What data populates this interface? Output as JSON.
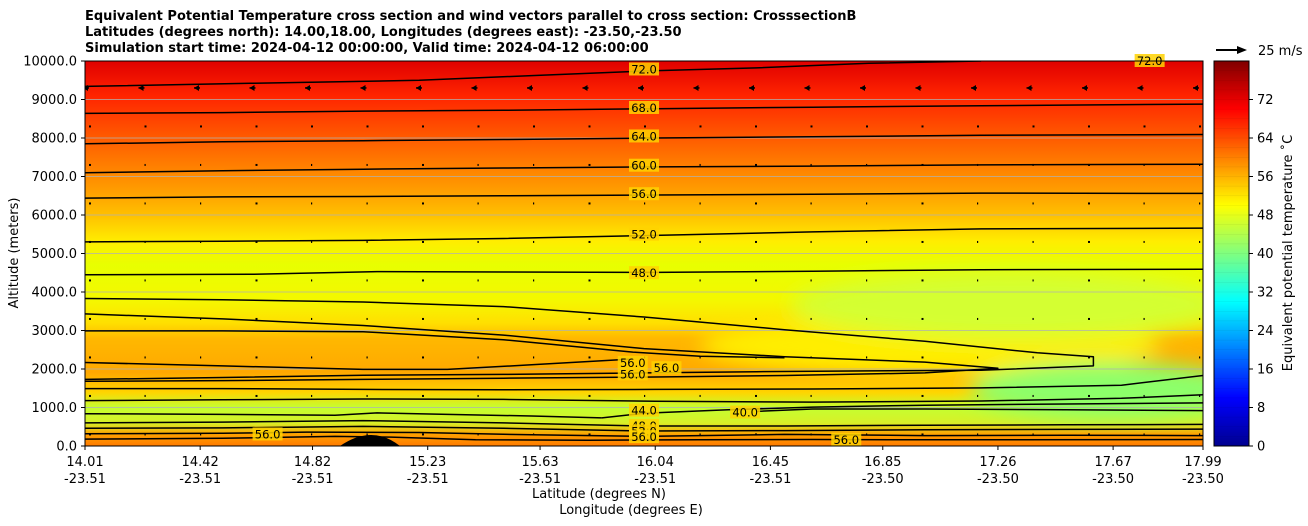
{
  "title_lines": [
    "Equivalent Potential Temperature cross section and wind vectors parallel to cross section: CrosssectionB",
    "Latitudes (degrees north): 14.00,18.00, Longitudes (degrees east): -23.50,-23.50",
    "Simulation start time: 2024-04-12 00:00:00, Valid time: 2024-04-12 06:00:00"
  ],
  "wind_key_label": "25 m/s",
  "chart_data": {
    "type": "heatmap",
    "xlabel": "Latitude (degrees N)",
    "xlabel2": "Longitude (degrees E)",
    "ylabel": "Altitude (meters)",
    "colorbar_label": "Equivalent potential temperature ˚C",
    "ylim": [
      0,
      10000
    ],
    "clim": [
      0,
      80
    ],
    "grid": true,
    "x_ticks": [
      {
        "lat": "14.01",
        "lon": "-23.51",
        "pos": 14.01
      },
      {
        "lat": "14.42",
        "lon": "-23.51",
        "pos": 14.42
      },
      {
        "lat": "14.82",
        "lon": "-23.51",
        "pos": 14.82
      },
      {
        "lat": "15.23",
        "lon": "-23.51",
        "pos": 15.23
      },
      {
        "lat": "15.63",
        "lon": "-23.51",
        "pos": 15.63
      },
      {
        "lat": "16.04",
        "lon": "-23.51",
        "pos": 16.04
      },
      {
        "lat": "16.45",
        "lon": "-23.51",
        "pos": 16.45
      },
      {
        "lat": "16.85",
        "lon": "-23.50",
        "pos": 16.85
      },
      {
        "lat": "17.26",
        "lon": "-23.50",
        "pos": 17.26
      },
      {
        "lat": "17.67",
        "lon": "-23.50",
        "pos": 17.67
      },
      {
        "lat": "17.99",
        "lon": "-23.50",
        "pos": 17.99
      }
    ],
    "y_ticks": [
      "0.0",
      "1000.0",
      "2000.0",
      "3000.0",
      "4000.0",
      "5000.0",
      "6000.0",
      "7000.0",
      "8000.0",
      "9000.0",
      "10000.0"
    ],
    "colorbar_ticks": [
      "0",
      "8",
      "16",
      "24",
      "32",
      "40",
      "48",
      "56",
      "64",
      "72"
    ],
    "contour_labels": [
      {
        "text": "72.0",
        "x": 16.0,
        "y": 9780
      },
      {
        "text": "72.0",
        "x": 17.8,
        "y": 10000
      },
      {
        "text": "68.0",
        "x": 16.0,
        "y": 8780
      },
      {
        "text": "64.0",
        "x": 16.0,
        "y": 8040
      },
      {
        "text": "60.0",
        "x": 16.0,
        "y": 7280
      },
      {
        "text": "56.0",
        "x": 16.0,
        "y": 6540
      },
      {
        "text": "52.0",
        "x": 16.0,
        "y": 5490
      },
      {
        "text": "48.0",
        "x": 16.0,
        "y": 4490
      },
      {
        "text": "56.0",
        "x": 15.96,
        "y": 2160
      },
      {
        "text": "56.0",
        "x": 16.08,
        "y": 2020
      },
      {
        "text": "56.0",
        "x": 15.96,
        "y": 1860
      },
      {
        "text": "44.0",
        "x": 16.0,
        "y": 920
      },
      {
        "text": "48.0",
        "x": 16.0,
        "y": 520
      },
      {
        "text": "52.0",
        "x": 16.0,
        "y": 380
      },
      {
        "text": "56.0",
        "x": 16.0,
        "y": 230
      },
      {
        "text": "56.0",
        "x": 14.66,
        "y": 300
      },
      {
        "text": "40.0",
        "x": 16.36,
        "y": 870
      },
      {
        "text": "56.0",
        "x": 16.72,
        "y": 160
      }
    ],
    "contours": [
      {
        "level": 72,
        "points": [
          [
            14.01,
            9340
          ],
          [
            14.6,
            9420
          ],
          [
            15.2,
            9500
          ],
          [
            15.6,
            9620
          ],
          [
            16.0,
            9740
          ],
          [
            16.4,
            9820
          ],
          [
            16.8,
            9940
          ],
          [
            17.2,
            10000
          ]
        ]
      },
      {
        "level": 68,
        "points": [
          [
            14.01,
            8640
          ],
          [
            14.5,
            8660
          ],
          [
            15.0,
            8700
          ],
          [
            15.5,
            8720
          ],
          [
            16.04,
            8760
          ],
          [
            16.6,
            8800
          ],
          [
            17.2,
            8840
          ],
          [
            17.99,
            8880
          ]
        ]
      },
      {
        "level": 64,
        "points": [
          [
            14.01,
            7850
          ],
          [
            14.5,
            7900
          ],
          [
            15.0,
            7930
          ],
          [
            15.5,
            7960
          ],
          [
            16.04,
            8000
          ],
          [
            16.6,
            8030
          ],
          [
            17.2,
            8070
          ],
          [
            17.99,
            8090
          ]
        ]
      },
      {
        "level": 60,
        "points": [
          [
            14.01,
            7100
          ],
          [
            14.5,
            7150
          ],
          [
            15.0,
            7190
          ],
          [
            15.5,
            7220
          ],
          [
            16.04,
            7250
          ],
          [
            16.6,
            7270
          ],
          [
            17.2,
            7300
          ],
          [
            17.99,
            7320
          ]
        ]
      },
      {
        "level": 56,
        "points": [
          [
            14.01,
            6440
          ],
          [
            14.5,
            6470
          ],
          [
            15.0,
            6480
          ],
          [
            15.5,
            6500
          ],
          [
            16.04,
            6520
          ],
          [
            16.6,
            6540
          ],
          [
            17.2,
            6570
          ],
          [
            17.99,
            6560
          ]
        ]
      },
      {
        "level": 52,
        "points": [
          [
            14.01,
            5300
          ],
          [
            14.5,
            5320
          ],
          [
            15.0,
            5340
          ],
          [
            15.5,
            5390
          ],
          [
            16.04,
            5470
          ],
          [
            16.6,
            5560
          ],
          [
            17.2,
            5640
          ],
          [
            17.99,
            5660
          ]
        ]
      },
      {
        "level": 48,
        "points": [
          [
            14.01,
            4450
          ],
          [
            14.6,
            4460
          ],
          [
            15.05,
            4530
          ],
          [
            15.5,
            4520
          ],
          [
            16.04,
            4510
          ],
          [
            16.6,
            4540
          ],
          [
            17.2,
            4580
          ],
          [
            17.99,
            4590
          ]
        ]
      },
      {
        "level": 56,
        "points": [
          [
            14.01,
            3830
          ],
          [
            14.5,
            3800
          ],
          [
            15.0,
            3740
          ],
          [
            15.5,
            3620
          ],
          [
            16.0,
            3350
          ],
          [
            16.5,
            3020
          ],
          [
            17.0,
            2720
          ],
          [
            17.4,
            2420
          ],
          [
            17.6,
            2320
          ],
          [
            17.6,
            2080
          ],
          [
            17.2,
            1970
          ],
          [
            16.8,
            1950
          ],
          [
            16.4,
            1930
          ],
          [
            16.0,
            1900
          ],
          [
            15.5,
            1860
          ],
          [
            15.0,
            1840
          ],
          [
            14.5,
            1780
          ],
          [
            14.01,
            1730
          ]
        ]
      },
      {
        "level": 56,
        "points": [
          [
            14.01,
            3430
          ],
          [
            14.5,
            3300
          ],
          [
            15.0,
            3130
          ],
          [
            15.5,
            2880
          ],
          [
            16.0,
            2530
          ],
          [
            16.5,
            2320
          ],
          [
            17.0,
            2180
          ],
          [
            17.26,
            2020
          ],
          [
            17.0,
            1900
          ],
          [
            16.5,
            1830
          ],
          [
            16.0,
            1790
          ],
          [
            15.5,
            1760
          ],
          [
            15.0,
            1730
          ],
          [
            14.5,
            1700
          ],
          [
            14.01,
            1680
          ]
        ]
      },
      {
        "level": 56,
        "points": [
          [
            14.01,
            2990
          ],
          [
            14.5,
            2990
          ],
          [
            15.0,
            2970
          ],
          [
            15.5,
            2760
          ],
          [
            15.96,
            2440
          ],
          [
            16.2,
            2330
          ],
          [
            16.5,
            2290
          ]
        ]
      },
      {
        "level": 56,
        "points": [
          [
            14.01,
            2170
          ],
          [
            14.5,
            2080
          ],
          [
            15.0,
            1990
          ],
          [
            15.3,
            1990
          ],
          [
            15.6,
            2110
          ],
          [
            15.96,
            2260
          ]
        ]
      },
      {
        "level": 56,
        "points": [
          [
            14.01,
            1490
          ],
          [
            14.5,
            1490
          ],
          [
            15.0,
            1470
          ],
          [
            15.5,
            1460
          ],
          [
            16.04,
            1470
          ],
          [
            16.6,
            1480
          ],
          [
            17.2,
            1510
          ],
          [
            17.7,
            1580
          ],
          [
            17.99,
            1830
          ]
        ]
      },
      {
        "level": 52,
        "points": [
          [
            14.01,
            1180
          ],
          [
            14.5,
            1200
          ],
          [
            15.0,
            1220
          ],
          [
            15.5,
            1210
          ],
          [
            16.04,
            1160
          ],
          [
            16.6,
            1140
          ],
          [
            17.2,
            1170
          ],
          [
            17.7,
            1240
          ],
          [
            17.99,
            1330
          ]
        ]
      },
      {
        "level": 44,
        "points": [
          [
            15.85,
            730
          ],
          [
            16.0,
            850
          ],
          [
            16.3,
            940
          ],
          [
            16.6,
            1010
          ],
          [
            17.0,
            1060
          ],
          [
            17.5,
            1090
          ],
          [
            17.99,
            1120
          ]
        ]
      },
      {
        "level": 48,
        "points": [
          [
            14.01,
            840
          ],
          [
            14.5,
            820
          ],
          [
            14.9,
            800
          ],
          [
            15.05,
            860
          ],
          [
            15.3,
            820
          ],
          [
            15.6,
            780
          ],
          [
            15.85,
            730
          ]
        ]
      },
      {
        "level": 40,
        "points": [
          [
            16.4,
            900
          ],
          [
            16.6,
            960
          ],
          [
            17.0,
            960
          ],
          [
            17.5,
            940
          ],
          [
            17.99,
            920
          ]
        ]
      },
      {
        "level": 48,
        "points": [
          [
            14.01,
            600
          ],
          [
            14.5,
            620
          ],
          [
            15.0,
            660
          ],
          [
            15.5,
            600
          ],
          [
            16.0,
            520
          ],
          [
            16.5,
            520
          ],
          [
            17.0,
            540
          ],
          [
            17.5,
            550
          ],
          [
            17.99,
            560
          ]
        ]
      },
      {
        "level": 52,
        "points": [
          [
            14.01,
            460
          ],
          [
            14.5,
            470
          ],
          [
            15.0,
            510
          ],
          [
            15.5,
            460
          ],
          [
            16.0,
            390
          ],
          [
            16.5,
            400
          ],
          [
            17.0,
            420
          ],
          [
            17.5,
            430
          ],
          [
            17.99,
            440
          ]
        ]
      },
      {
        "level": 56,
        "points": [
          [
            14.01,
            320
          ],
          [
            14.5,
            330
          ],
          [
            14.8,
            360
          ],
          [
            15.2,
            350
          ],
          [
            15.6,
            290
          ],
          [
            16.0,
            250
          ],
          [
            16.5,
            300
          ],
          [
            17.0,
            270
          ],
          [
            17.5,
            280
          ],
          [
            17.99,
            270
          ]
        ]
      },
      {
        "level": 56,
        "points": [
          [
            14.01,
            180
          ],
          [
            14.5,
            200
          ],
          [
            14.9,
            250
          ],
          [
            15.1,
            230
          ],
          [
            15.4,
            160
          ],
          [
            15.8,
            150
          ],
          [
            16.2,
            160
          ],
          [
            16.6,
            170
          ],
          [
            17.0,
            160
          ],
          [
            17.99,
            170
          ]
        ]
      }
    ],
    "wind_vectors_note": "wind vectors parallel to cross section"
  }
}
